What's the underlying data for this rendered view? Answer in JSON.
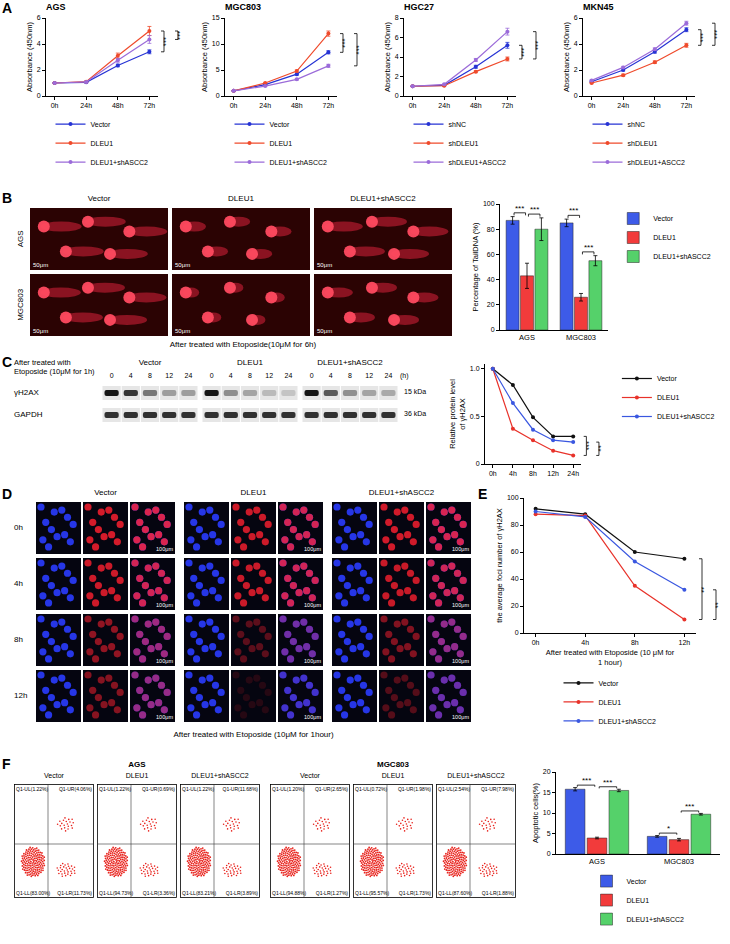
{
  "panel_labels": [
    "A",
    "B",
    "C",
    "D",
    "E",
    "F"
  ],
  "chart_data": [
    {
      "type": "line",
      "title": "AGS",
      "ylabel": "Absorbance (450nm)",
      "categories": [
        "0h",
        "24h",
        "48h",
        "72h"
      ],
      "ylim": [
        0,
        6
      ],
      "yticks": [
        0,
        2,
        4,
        6
      ],
      "grid": false,
      "legend": "bottom",
      "marker": "circle",
      "series": [
        {
          "name": "Vector",
          "color": "#2633d4",
          "values": [
            1.0,
            1.05,
            2.35,
            3.4
          ],
          "errors": [
            0.03,
            0.04,
            0.1,
            0.15
          ]
        },
        {
          "name": "DLEU1",
          "color": "#ef4a2b",
          "values": [
            1.0,
            1.1,
            3.1,
            5.0
          ],
          "errors": [
            0.03,
            0.04,
            0.2,
            0.35
          ]
        },
        {
          "name": "DLEU1+shASCC2",
          "color": "#9b6bd9",
          "values": [
            1.0,
            1.08,
            2.75,
            4.35
          ],
          "errors": [
            0.03,
            0.04,
            0.15,
            0.3
          ]
        }
      ],
      "annotations": [
        {
          "text": "***",
          "between": [
            "Vector",
            "DLEU1"
          ]
        },
        {
          "text": "***",
          "between": [
            "DLEU1",
            "DLEU1+shASCC2"
          ]
        }
      ]
    },
    {
      "type": "line",
      "title": "MGC803",
      "ylabel": "Absorbance (450nm)",
      "categories": [
        "0h",
        "24h",
        "48h",
        "72h"
      ],
      "ylim": [
        0,
        15
      ],
      "yticks": [
        0,
        5,
        10,
        15
      ],
      "grid": false,
      "legend": "bottom",
      "marker": "circle",
      "series": [
        {
          "name": "Vector",
          "color": "#2633d4",
          "values": [
            1.0,
            2.2,
            4.2,
            8.4
          ],
          "errors": [
            0.05,
            0.1,
            0.2,
            0.3
          ]
        },
        {
          "name": "DLEU1",
          "color": "#ef4a2b",
          "values": [
            1.0,
            2.5,
            4.8,
            12.0
          ],
          "errors": [
            0.05,
            0.1,
            0.2,
            0.5
          ]
        },
        {
          "name": "DLEU1+shASCC2",
          "color": "#9b6bd9",
          "values": [
            1.0,
            1.9,
            3.2,
            5.8
          ],
          "errors": [
            0.05,
            0.1,
            0.15,
            0.3
          ]
        }
      ],
      "annotations": [
        {
          "text": "***",
          "between": [
            "Vector",
            "DLEU1"
          ]
        },
        {
          "text": "***",
          "between": [
            "DLEU1",
            "DLEU1+shASCC2"
          ]
        }
      ]
    },
    {
      "type": "line",
      "title": "HGC27",
      "ylabel": "Absorbance (450nm)",
      "categories": [
        "0h",
        "24h",
        "48h",
        "72h"
      ],
      "ylim": [
        0,
        8
      ],
      "yticks": [
        0,
        2,
        4,
        6,
        8
      ],
      "grid": false,
      "legend": "bottom",
      "marker": "circle",
      "series": [
        {
          "name": "shNC",
          "color": "#2633d4",
          "values": [
            1.0,
            1.1,
            3.0,
            5.2
          ],
          "errors": [
            0.03,
            0.05,
            0.15,
            0.3
          ]
        },
        {
          "name": "shDLEU1",
          "color": "#ef4a2b",
          "values": [
            1.0,
            1.05,
            2.5,
            3.8
          ],
          "errors": [
            0.03,
            0.05,
            0.1,
            0.2
          ]
        },
        {
          "name": "shDLEU1+ASCC2",
          "color": "#9b6bd9",
          "values": [
            1.0,
            1.2,
            3.7,
            6.6
          ],
          "errors": [
            0.03,
            0.05,
            0.15,
            0.35
          ]
        }
      ],
      "annotations": [
        {
          "text": "***",
          "between": [
            "shNC",
            "shDLEU1"
          ]
        },
        {
          "text": "***",
          "between": [
            "shDLEU1",
            "shDLEU1+ASCC2"
          ]
        }
      ]
    },
    {
      "type": "line",
      "title": "MKN45",
      "ylabel": "Absorbance (450nm)",
      "categories": [
        "0h",
        "24h",
        "48h",
        "72h"
      ],
      "ylim": [
        0,
        6
      ],
      "yticks": [
        0,
        2,
        4,
        6
      ],
      "grid": false,
      "legend": "bottom",
      "marker": "circle",
      "series": [
        {
          "name": "shNC",
          "color": "#2633d4",
          "values": [
            1.1,
            2.0,
            3.4,
            5.1
          ],
          "errors": [
            0.05,
            0.08,
            0.1,
            0.15
          ]
        },
        {
          "name": "shDLEU1",
          "color": "#ef4a2b",
          "values": [
            1.0,
            1.6,
            2.6,
            3.9
          ],
          "errors": [
            0.05,
            0.08,
            0.1,
            0.15
          ]
        },
        {
          "name": "shDLEU1+ASCC2",
          "color": "#9b6bd9",
          "values": [
            1.2,
            2.2,
            3.6,
            5.6
          ],
          "errors": [
            0.05,
            0.08,
            0.1,
            0.15
          ]
        }
      ],
      "annotations": [
        {
          "text": "***",
          "between": [
            "shNC",
            "shDLEU1"
          ]
        },
        {
          "text": "***",
          "between": [
            "shDLEU1",
            "shDLEU1+ASCC2"
          ]
        }
      ]
    },
    {
      "type": "bar",
      "ylabel": "Percentage of TailDNA (%)",
      "categories": [
        "AGS",
        "MGC803"
      ],
      "ylim": [
        0,
        100
      ],
      "yticks": [
        0,
        20,
        40,
        60,
        80,
        100
      ],
      "grid": false,
      "legend": "right",
      "series": [
        {
          "name": "Vector",
          "color": "#3d5be8",
          "values": [
            87,
            85
          ],
          "errors": [
            3,
            3
          ]
        },
        {
          "name": "DLEU1",
          "color": "#f23b3b",
          "values": [
            43,
            26
          ],
          "errors": [
            10,
            3
          ]
        },
        {
          "name": "DLEU1+shASCC2",
          "color": "#55d16a",
          "values": [
            80,
            55
          ],
          "errors": [
            9,
            4
          ]
        }
      ],
      "annotations": [
        {
          "text": "***",
          "category": "AGS",
          "between": [
            "Vector",
            "DLEU1"
          ]
        },
        {
          "text": "***",
          "category": "AGS",
          "between": [
            "DLEU1",
            "DLEU1+shASCC2"
          ]
        },
        {
          "text": "***",
          "category": "MGC803",
          "between": [
            "Vector",
            "DLEU1"
          ]
        },
        {
          "text": "***",
          "category": "MGC803",
          "between": [
            "DLEU1",
            "DLEU1+shASCC2"
          ]
        }
      ]
    },
    {
      "type": "line",
      "ylabel": "Relative protein level of γH2AX",
      "categories": [
        "0h",
        "4h",
        "8h",
        "12h",
        "24h"
      ],
      "ylim": [
        0,
        1.05
      ],
      "yticks": [
        0,
        0.5,
        {
          "value": 1,
          "label": "1.0"
        }
      ],
      "grid": false,
      "legend": "right",
      "marker": "circle",
      "series": [
        {
          "name": "Vector",
          "color": "#111111",
          "values": [
            1.0,
            0.83,
            0.49,
            0.29,
            0.29
          ]
        },
        {
          "name": "DLEU1",
          "color": "#e8322a",
          "values": [
            1.0,
            0.37,
            0.25,
            0.14,
            0.09
          ]
        },
        {
          "name": "DLEU1+shASCC2",
          "color": "#3a57e0",
          "values": [
            1.0,
            0.64,
            0.36,
            0.25,
            0.23
          ]
        }
      ],
      "annotations": [
        {
          "text": "***",
          "between": [
            "Vector",
            "DLEU1"
          ]
        },
        {
          "text": "**",
          "between": [
            "DLEU1",
            "DLEU1+shASCC2"
          ]
        }
      ]
    },
    {
      "type": "line",
      "ylabel": "the average foci number of γH2AX",
      "xlabel": "After treated with Etoposide (10 μM for 1 hour)",
      "categories": [
        "0h",
        "4h",
        "8h",
        "12h"
      ],
      "ylim": [
        0,
        100
      ],
      "yticks": [
        0,
        20,
        40,
        60,
        80,
        100
      ],
      "grid": false,
      "legend": "bottom",
      "marker": "circle",
      "series": [
        {
          "name": "Vector",
          "color": "#111111",
          "values": [
            92,
            88,
            60,
            55
          ]
        },
        {
          "name": "DLEU1",
          "color": "#e8322a",
          "values": [
            88,
            87,
            35,
            10
          ]
        },
        {
          "name": "DLEU1+shASCC2",
          "color": "#3a57e0",
          "values": [
            90,
            86,
            53,
            32
          ]
        }
      ],
      "annotations": [
        {
          "text": "**",
          "between": [
            "Vector",
            "DLEU1"
          ]
        },
        {
          "text": "**",
          "between": [
            "DLEU1",
            "DLEU1+shASCC2"
          ]
        }
      ]
    },
    {
      "type": "bar",
      "ylabel": "Apoptotic cells(%)",
      "categories": [
        "AGS",
        "MGC803"
      ],
      "ylim": [
        0,
        20
      ],
      "yticks": [
        0,
        5,
        10,
        15,
        20
      ],
      "grid": false,
      "legend": "bottom",
      "series": [
        {
          "name": "Vector",
          "color": "#3d5be8",
          "values": [
            15.8,
            4.3
          ],
          "errors": [
            0.4,
            0.2
          ]
        },
        {
          "name": "DLEU1",
          "color": "#f23b3b",
          "values": [
            3.9,
            3.5
          ],
          "errors": [
            0.2,
            0.3
          ]
        },
        {
          "name": "DLEU1+shASCC2",
          "color": "#55d16a",
          "values": [
            15.5,
            9.7
          ],
          "errors": [
            0.3,
            0.2
          ]
        }
      ],
      "annotations": [
        {
          "text": "***",
          "category": "AGS",
          "between": [
            "Vector",
            "DLEU1"
          ]
        },
        {
          "text": "***",
          "category": "AGS",
          "between": [
            "DLEU1",
            "DLEU1+shASCC2"
          ]
        },
        {
          "text": "*",
          "category": "MGC803",
          "between": [
            "Vector",
            "DLEU1"
          ]
        },
        {
          "text": "***",
          "category": "MGC803",
          "between": [
            "DLEU1",
            "DLEU1+shASCC2"
          ]
        }
      ]
    }
  ],
  "images": {
    "comet": {
      "columns": [
        "Vector",
        "DLEU1",
        "DLEU1+shASCC2"
      ],
      "rows": [
        "AGS",
        "MGC803"
      ],
      "scale_bar": "50μm",
      "caption": "After treated with Etoposide(10μM for 6h)"
    },
    "blot": {
      "caption": "After treated with Etoposide (10μM for 1h)",
      "groups": [
        "Vector",
        "DLEU1",
        "DLEU1+shASCC2"
      ],
      "times": [
        "0",
        "4",
        "8",
        "12",
        "24"
      ],
      "time_unit": "(h)",
      "bands": [
        {
          "name": "γH2AX",
          "size": "15 kDa"
        },
        {
          "name": "GAPDH",
          "size": "36 kDa"
        }
      ]
    },
    "immunofluorescence": {
      "columns": [
        "Vector",
        "DLEU1",
        "DLEU1+shASCC2"
      ],
      "rows": [
        "0h",
        "4h",
        "8h",
        "12h"
      ],
      "scale_bar": "100μm",
      "caption": "After treated with Etoposide (10μM for 1hour)"
    },
    "flow": {
      "groups": [
        {
          "title": "AGS",
          "plots": [
            {
              "name": "Vector",
              "quadrants": {
                "UL": "Q1-UL(1.22%)",
                "UR": "Q1-UR(4.06%)",
                "LL": "Q1-LL(83.00%)",
                "LR": "Q1-LR(11.73%)"
              }
            },
            {
              "name": "DLEU1",
              "quadrants": {
                "UL": "Q1-UL(1.22%)",
                "UR": "Q1-UR(0.69%)",
                "LL": "Q1-LL(94.73%)",
                "LR": "Q1-LR(3.36%)"
              }
            },
            {
              "name": "DLEU1+shASCC2",
              "quadrants": {
                "UL": "Q1-UL(1.22%)",
                "UR": "Q1-UR(11.68%)",
                "LL": "Q1-LL(83.21%)",
                "LR": "Q1-LR(3.89%)"
              }
            }
          ]
        },
        {
          "title": "MGC803",
          "plots": [
            {
              "name": "Vector",
              "quadrants": {
                "UL": "Q1-UL(1.20%)",
                "UR": "Q1-UR(2.65%)",
                "LL": "Q1-LL(94.88%)",
                "LR": "Q1-LR(1.27%)"
              }
            },
            {
              "name": "DLEU1",
              "quadrants": {
                "UL": "Q1-UL(0.72%)",
                "UR": "Q1-UR(1.98%)",
                "LL": "Q1-LL(95.57%)",
                "LR": "Q1-LR(1.73%)"
              }
            },
            {
              "name": "DLEU1+shASCC2",
              "quadrants": {
                "UL": "Q1-UL(2.54%)",
                "UR": "Q1-UR(7.98%)",
                "LL": "Q1-LL(87.60%)",
                "LR": "Q1-LR(1.88%)"
              }
            }
          ]
        }
      ]
    }
  }
}
